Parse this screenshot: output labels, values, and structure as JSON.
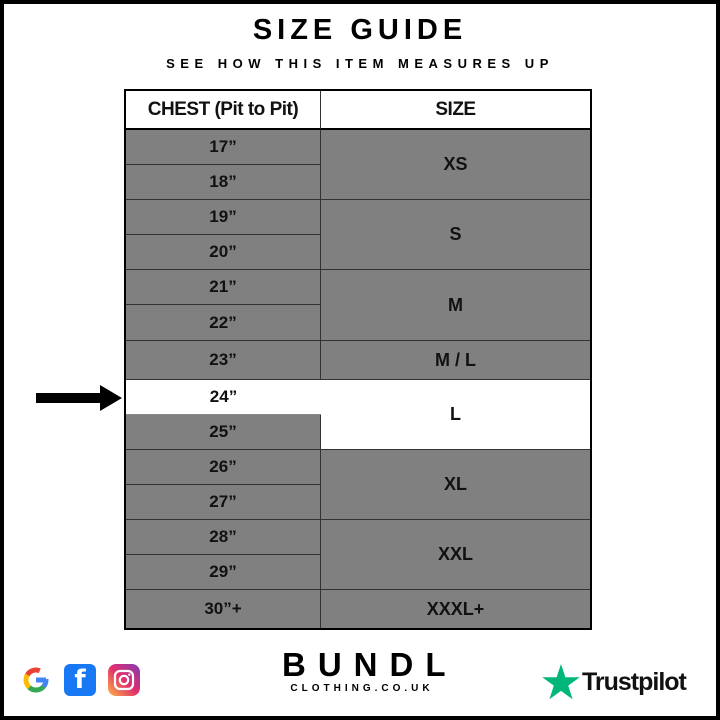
{
  "title": "SIZE GUIDE",
  "subtitle": "SEE HOW THIS ITEM MEASURES UP",
  "table": {
    "headers": [
      "CHEST (Pit to Pit)",
      "SIZE"
    ],
    "chest": [
      "17”",
      "18”",
      "19”",
      "20”",
      "21”",
      "22”",
      "23”",
      "24”",
      "25”",
      "26”",
      "27”",
      "28”",
      "29”",
      "30”+"
    ],
    "sizes": [
      "XS",
      "S",
      "M",
      "M / L",
      "L",
      "XL",
      "XXL",
      "XXXL+"
    ],
    "highlighted_chest": "24”",
    "highlighted_size": "L",
    "colors": {
      "cell": "#808080",
      "highlight": "#ffffff"
    }
  },
  "footer": {
    "social_icons": [
      "google-icon",
      "facebook-icon",
      "instagram-icon"
    ],
    "brand": "BUNDL",
    "brand_sub": "CLOTHING.CO.UK",
    "trustpilot": "Trustpilot",
    "trustpilot_color": "#00b67a"
  }
}
